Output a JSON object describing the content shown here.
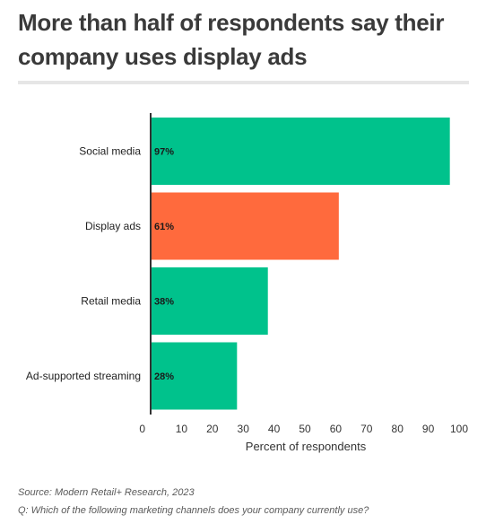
{
  "title": "More than half of respondents say their company uses display ads",
  "chart_data": {
    "type": "bar",
    "orientation": "horizontal",
    "categories": [
      "Social media",
      "Display ads",
      "Retail media",
      "Ad-supported streaming"
    ],
    "values": [
      97,
      61,
      38,
      28
    ],
    "value_labels": [
      "97%",
      "61%",
      "38%",
      "28%"
    ],
    "highlight_category": "Display ads",
    "xlabel": "Percent of respondents",
    "ylabel": "",
    "xlim": [
      0,
      100
    ],
    "xticks": [
      0,
      10,
      20,
      30,
      40,
      50,
      60,
      70,
      80,
      90,
      100
    ],
    "grid": false,
    "colors": {
      "default": "#00c28c",
      "highlight": "#ff6a3d",
      "axis": "#333333"
    }
  },
  "footer": {
    "source": "Source: Modern Retail+ Research, 2023",
    "question": "Q: Which of the following marketing channels does your company currently use?"
  }
}
